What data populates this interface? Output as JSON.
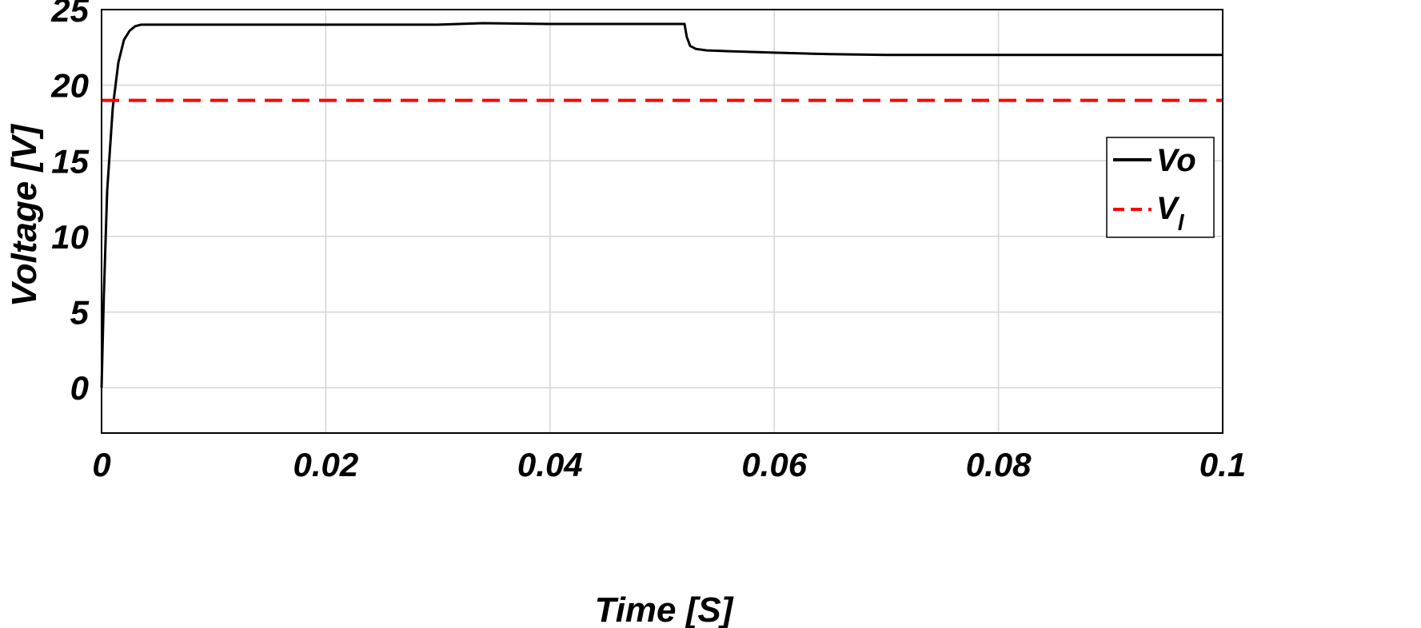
{
  "chart_data": {
    "type": "line",
    "title": "",
    "xlabel": "Time [S]",
    "ylabel": "Voltage [V]",
    "xlim": [
      0,
      0.1
    ],
    "ylim": [
      -3,
      25
    ],
    "x_ticks": [
      0,
      0.02,
      0.04,
      0.06,
      0.08,
      0.1
    ],
    "x_tick_labels": [
      "0",
      "0.02",
      "0.04",
      "0.06",
      "0.08",
      "0.1"
    ],
    "y_ticks": [
      0,
      5,
      10,
      15,
      20,
      25
    ],
    "y_tick_labels": [
      "0",
      "5",
      "10",
      "15",
      "20",
      "25"
    ],
    "grid": true,
    "legend_position": "right",
    "series": [
      {
        "name": "Vo",
        "color": "#000000",
        "style": "solid",
        "x": [
          0,
          0.0002,
          0.0005,
          0.001,
          0.0015,
          0.002,
          0.0025,
          0.003,
          0.0035,
          0.004,
          0.01,
          0.02,
          0.03,
          0.034,
          0.04,
          0.052,
          0.0522,
          0.0525,
          0.053,
          0.054,
          0.056,
          0.06,
          0.065,
          0.07,
          0.08,
          0.09,
          0.1
        ],
        "y": [
          0,
          6,
          13,
          18.5,
          21.5,
          23,
          23.6,
          23.9,
          24.0,
          24.0,
          24.0,
          24.0,
          24.0,
          24.1,
          24.05,
          24.05,
          23.2,
          22.6,
          22.4,
          22.3,
          22.25,
          22.15,
          22.05,
          22.0,
          22.0,
          22.0,
          22.0
        ]
      },
      {
        "name": "V_l",
        "color": "#ff0000",
        "style": "dashed",
        "x": [
          0,
          0.1
        ],
        "y": [
          19,
          19
        ]
      }
    ]
  },
  "legend": {
    "vo_label": "Vo",
    "vl_main": "V",
    "vl_sub": "l"
  }
}
